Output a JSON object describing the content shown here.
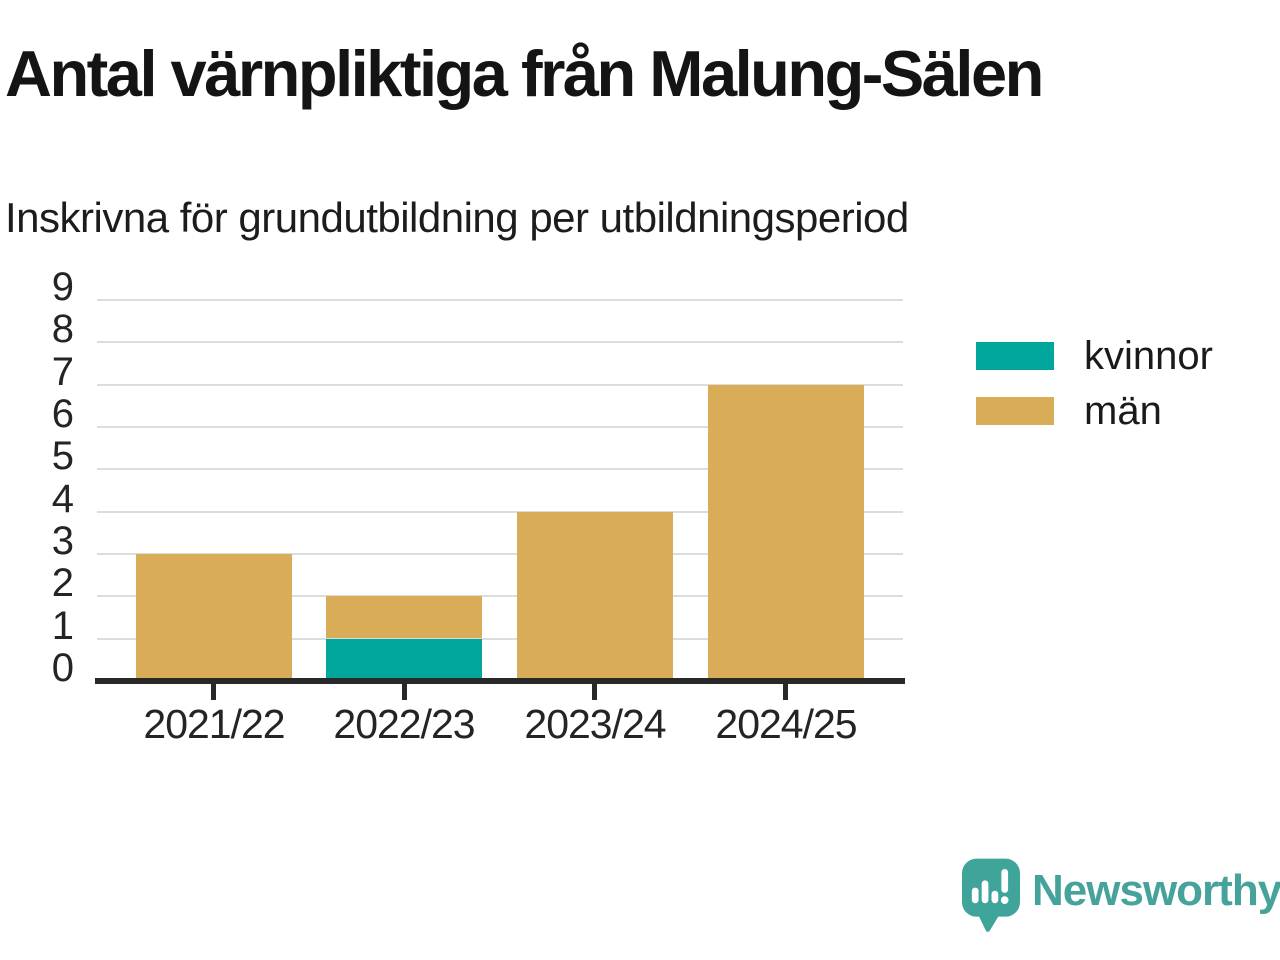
{
  "header": {
    "title": "Antal värnpliktiga från Malung-Sälen",
    "subtitle": "Inskrivna för grundutbildning per utbildningsperiod"
  },
  "chart_data": {
    "type": "bar",
    "stacked": true,
    "title": "Antal värnpliktiga från Malung-Sälen",
    "subtitle": "Inskrivna för grundutbildning per utbildningsperiod",
    "categories": [
      "2021/22",
      "2022/23",
      "2023/24",
      "2024/25"
    ],
    "series": [
      {
        "name": "kvinnor",
        "color": "#00a69c",
        "values": [
          0,
          1,
          0,
          0
        ]
      },
      {
        "name": "män",
        "color": "#d9ad57",
        "values": [
          3,
          1,
          4,
          7
        ]
      }
    ],
    "totals": [
      3,
      2,
      4,
      7
    ],
    "xlabel": "",
    "ylabel": "",
    "ylim": [
      0,
      9
    ],
    "yticks": [
      0,
      1,
      2,
      3,
      4,
      5,
      6,
      7,
      8,
      9
    ],
    "grid": true,
    "grid_color": "#dcdcdc",
    "axis_color": "#282828",
    "legend_position": "right"
  },
  "legend": {
    "items": [
      {
        "label": "kvinnor",
        "color": "#00a69c"
      },
      {
        "label": "män",
        "color": "#d9ad57"
      }
    ]
  },
  "footer": {
    "brand": "Newsworthy",
    "logo_icon": "newsworthy-speech-bubble-barchart-icon",
    "logo_color": "#3fa59b",
    "brand_text_color": "#46a39b"
  }
}
